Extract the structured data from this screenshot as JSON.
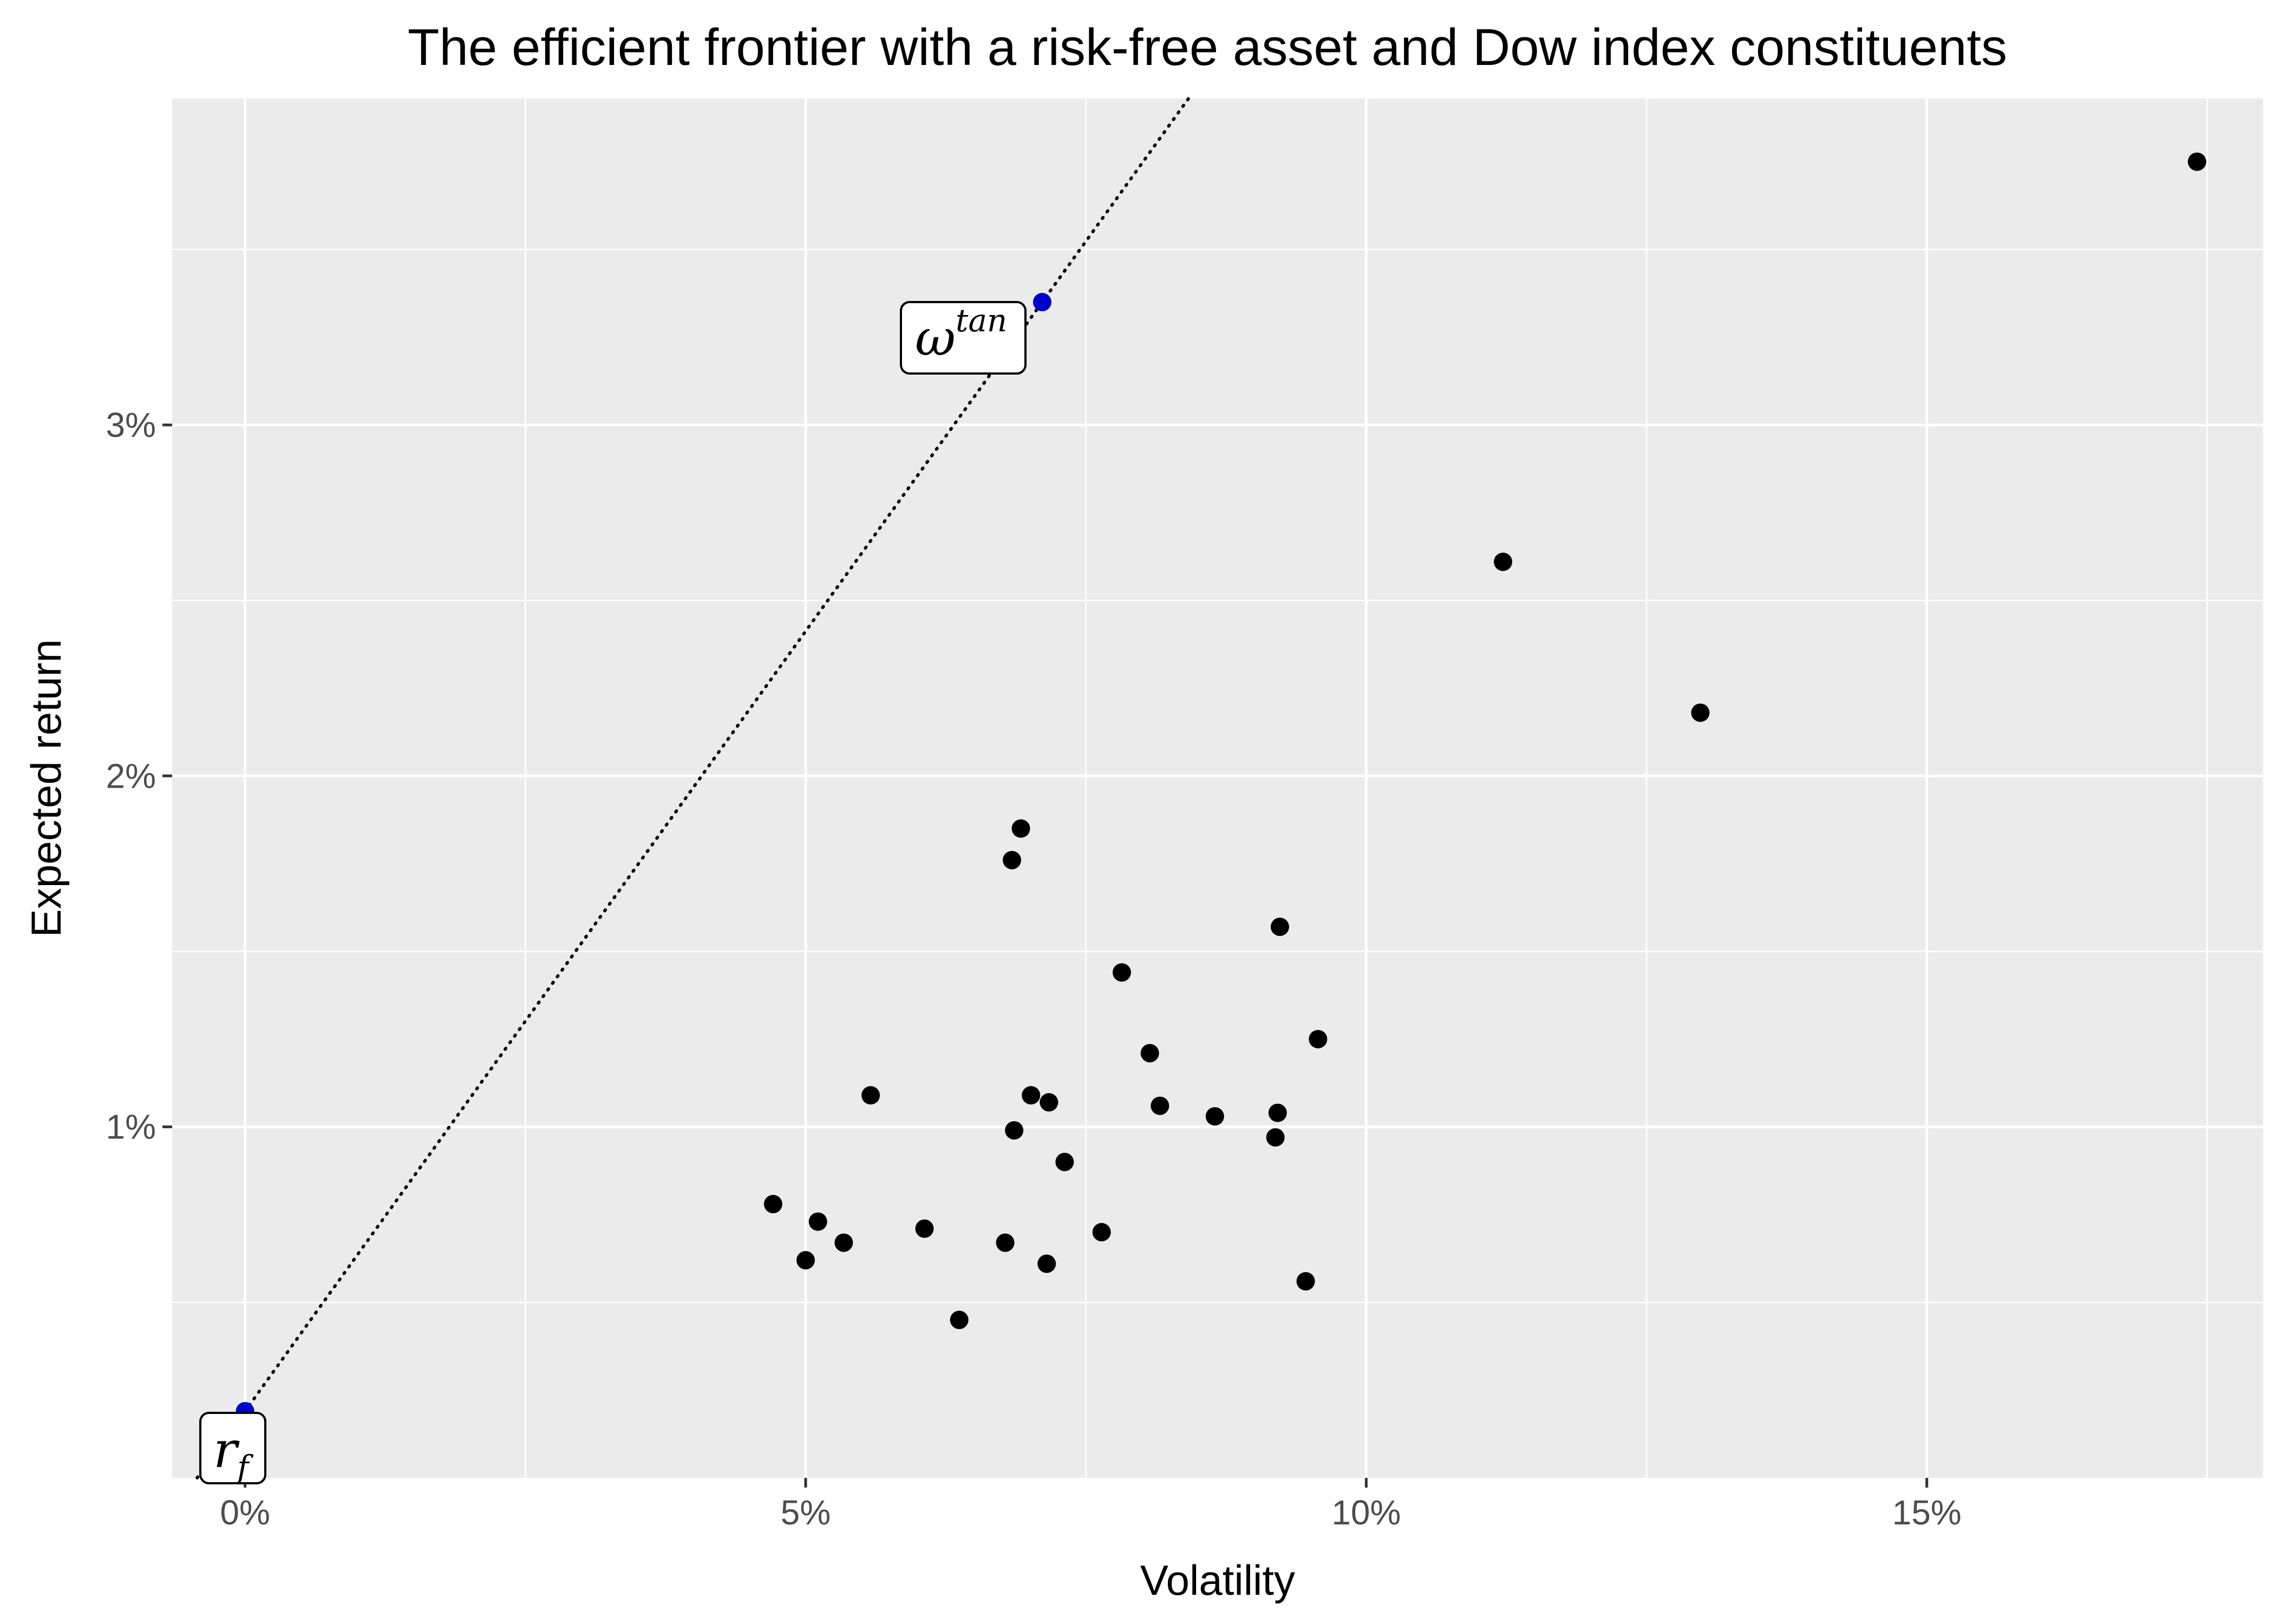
{
  "chart_data": {
    "type": "scatter",
    "title": "The efficient frontier with a risk-free asset and Dow index constituents",
    "xlabel": "Volatility",
    "ylabel": "Expected return",
    "xlim": [
      -0.0065,
      0.18
    ],
    "ylim": [
      0.0,
      0.0393
    ],
    "x_ticks": [
      0.0,
      0.025,
      0.05,
      0.075,
      0.1,
      0.125,
      0.15,
      0.175
    ],
    "x_tick_labels": [
      "0%",
      "",
      "5%",
      "",
      "10%",
      "",
      "15%",
      ""
    ],
    "y_ticks": [
      0.005,
      0.01,
      0.015,
      0.02,
      0.025,
      0.03,
      0.035
    ],
    "y_tick_labels": [
      "",
      "1%",
      "",
      "2%",
      "",
      "3%",
      ""
    ],
    "grid": true,
    "legend": "none",
    "colors": {
      "panel": "#ebebeb",
      "grid": "#ffffff",
      "points": "#000000",
      "highlight": "#0000cd",
      "line": "#000000"
    },
    "series": [
      {
        "x": [
          0.0471,
          0.05,
          0.0511,
          0.0534,
          0.0558,
          0.0606,
          0.0637,
          0.0678,
          0.0684,
          0.0686,
          0.0692,
          0.0701,
          0.0715,
          0.0717,
          0.0731,
          0.0764,
          0.0782,
          0.0807,
          0.0816,
          0.0865,
          0.0919,
          0.0921,
          0.0923,
          0.0946,
          0.0957,
          0.1122,
          0.1298,
          0.1741
        ],
        "y": [
          0.0078,
          0.0062,
          0.0073,
          0.0067,
          0.0109,
          0.0071,
          0.0045,
          0.0067,
          0.0176,
          0.0099,
          0.0185,
          0.0109,
          0.0061,
          0.0107,
          0.009,
          0.007,
          0.0144,
          0.0121,
          0.0106,
          0.0103,
          0.0097,
          0.0104,
          0.0157,
          0.0056,
          0.0125,
          0.0261,
          0.0218,
          0.0375
        ]
      }
    ],
    "highlighted_points": [
      {
        "label": "r",
        "subscript": "f",
        "x": 0.0,
        "y": 0.0019
      },
      {
        "label": "ω",
        "superscript": "tan",
        "x": 0.0711,
        "y": 0.0335
      }
    ],
    "capital_market_line": {
      "style": "dotted"
    }
  }
}
